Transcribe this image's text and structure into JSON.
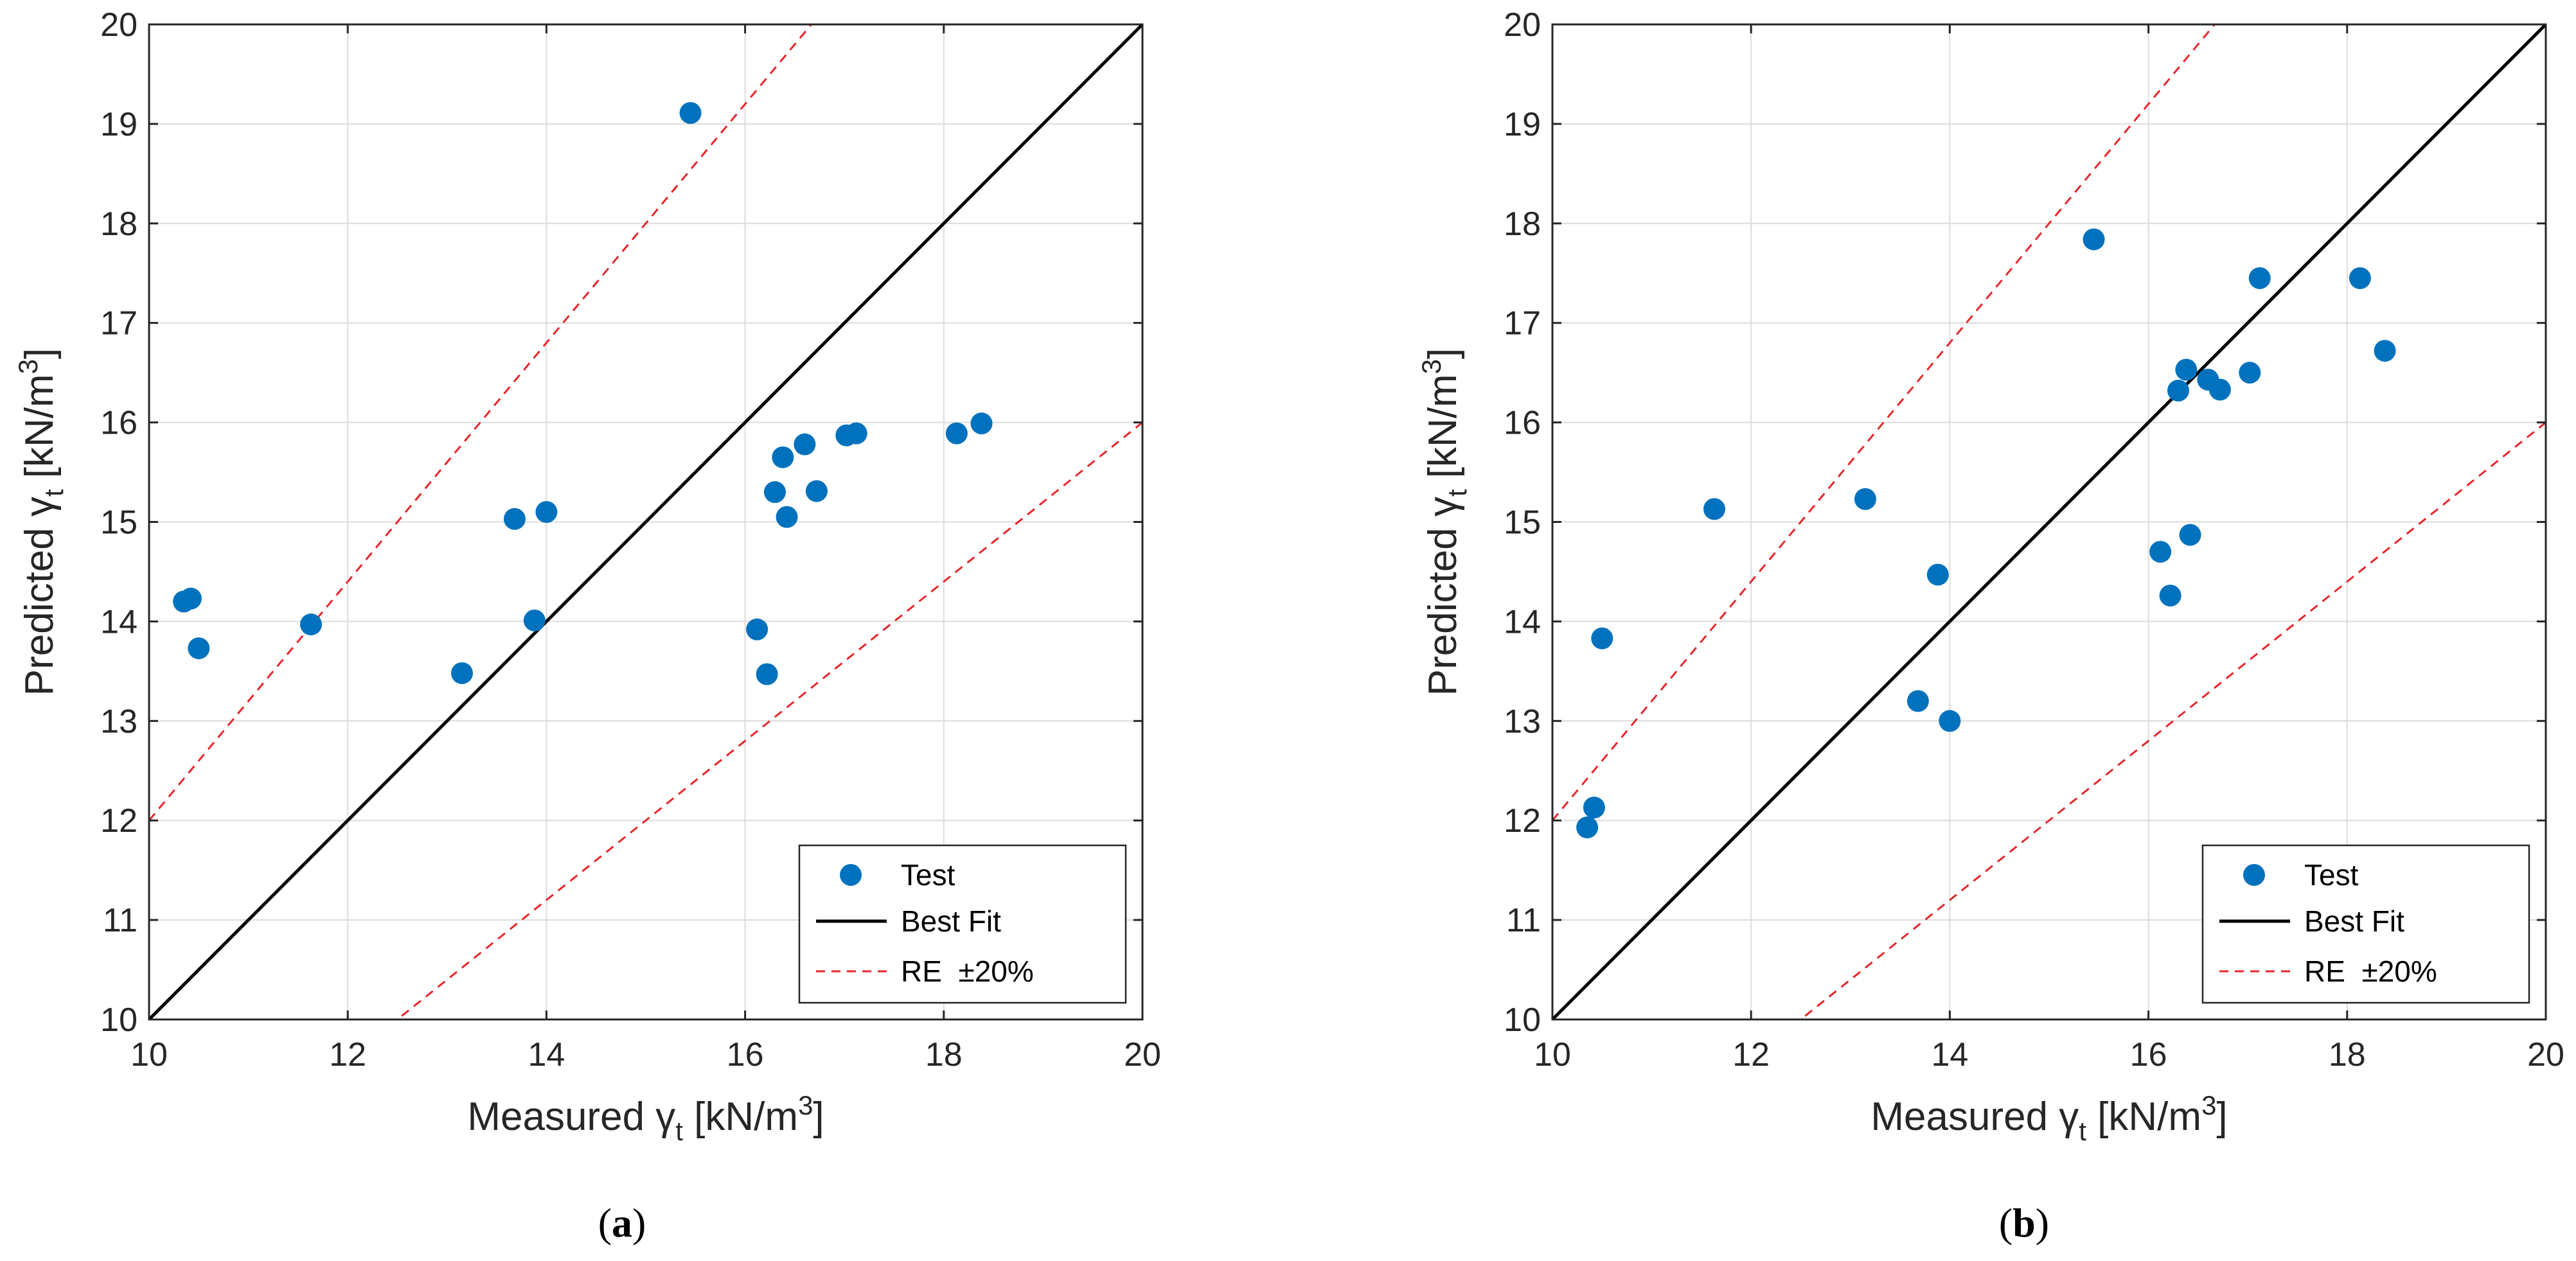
{
  "colors": {
    "marker": "#0072BD",
    "best_fit": "#000000",
    "re_band": "#E8262B",
    "grid": "#DCDCDC",
    "axes": "#262626"
  },
  "chart_data": [
    {
      "type": "scatter",
      "panel_label": "(a)",
      "caption_letter": "a",
      "xlabel": "Measured γt [kN/m3]",
      "xlabel_parts": {
        "prefix": "Measured ",
        "symbol": "γ",
        "subscript": "t",
        "unit_open": " [kN/m",
        "superscript": "3",
        "unit_close": "]"
      },
      "ylabel": "Predicted γt [kN/m3]",
      "ylabel_parts": {
        "prefix": "Predicted ",
        "symbol": "γ",
        "subscript": "t",
        "unit_open": " [kN/m",
        "superscript": "3",
        "unit_close": "]"
      },
      "xlim": [
        10,
        20
      ],
      "ylim": [
        10,
        20
      ],
      "xticks": [
        "10",
        "12",
        "14",
        "16",
        "18",
        "20"
      ],
      "yticks": [
        "10",
        "11",
        "12",
        "13",
        "14",
        "15",
        "16",
        "17",
        "18",
        "19",
        "20"
      ],
      "grid": true,
      "legend_position": "bottom-right",
      "legend": [
        "Test",
        "Best Fit",
        "RE  ±20%"
      ],
      "lines": {
        "best_fit": {
          "slope": 1.0
        },
        "re_upper": {
          "slope": 1.2
        },
        "re_lower": {
          "slope": 0.8
        }
      },
      "series": [
        {
          "name": "Test",
          "points": [
            [
              10.35,
              14.2
            ],
            [
              10.42,
              14.23
            ],
            [
              10.5,
              13.73
            ],
            [
              11.63,
              13.97
            ],
            [
              13.15,
              13.48
            ],
            [
              13.68,
              15.03
            ],
            [
              13.88,
              14.01
            ],
            [
              14.0,
              15.1
            ],
            [
              15.45,
              19.11
            ],
            [
              16.12,
              13.92
            ],
            [
              16.22,
              13.47
            ],
            [
              16.3,
              15.3
            ],
            [
              16.38,
              15.65
            ],
            [
              16.42,
              15.05
            ],
            [
              16.6,
              15.78
            ],
            [
              16.72,
              15.31
            ],
            [
              17.02,
              15.87
            ],
            [
              17.12,
              15.89
            ],
            [
              18.13,
              15.89
            ],
            [
              18.38,
              15.99
            ]
          ]
        }
      ]
    },
    {
      "type": "scatter",
      "panel_label": "(b)",
      "caption_letter": "b",
      "xlabel": "Measured γt [kN/m3]",
      "xlabel_parts": {
        "prefix": "Measured ",
        "symbol": "γ",
        "subscript": "t",
        "unit_open": " [kN/m",
        "superscript": "3",
        "unit_close": "]"
      },
      "ylabel": "Predicted γt [kN/m3]",
      "ylabel_parts": {
        "prefix": "Predicted ",
        "symbol": "γ",
        "subscript": "t",
        "unit_open": " [kN/m",
        "superscript": "3",
        "unit_close": "]"
      },
      "xlim": [
        10,
        20
      ],
      "ylim": [
        10,
        20
      ],
      "xticks": [
        "10",
        "12",
        "14",
        "16",
        "18",
        "20"
      ],
      "yticks": [
        "10",
        "11",
        "12",
        "13",
        "14",
        "15",
        "16",
        "17",
        "18",
        "19",
        "20"
      ],
      "grid": true,
      "legend_position": "bottom-right",
      "legend": [
        "Test",
        "Best Fit",
        "RE  ±20%"
      ],
      "lines": {
        "best_fit": {
          "slope": 1.0
        },
        "re_upper": {
          "slope": 1.2
        },
        "re_lower": {
          "slope": 0.8
        }
      },
      "series": [
        {
          "name": "Test",
          "points": [
            [
              10.35,
              11.93
            ],
            [
              10.42,
              12.13
            ],
            [
              10.5,
              13.83
            ],
            [
              11.63,
              15.13
            ],
            [
              13.15,
              15.23
            ],
            [
              13.68,
              13.2
            ],
            [
              13.88,
              14.47
            ],
            [
              14.0,
              13.0
            ],
            [
              15.45,
              17.84
            ],
            [
              16.12,
              14.7
            ],
            [
              16.22,
              14.26
            ],
            [
              16.3,
              16.32
            ],
            [
              16.38,
              16.53
            ],
            [
              16.42,
              14.87
            ],
            [
              16.6,
              16.43
            ],
            [
              16.72,
              16.33
            ],
            [
              17.02,
              16.5
            ],
            [
              17.12,
              17.45
            ],
            [
              18.13,
              17.45
            ],
            [
              18.38,
              16.72
            ]
          ]
        }
      ]
    }
  ]
}
